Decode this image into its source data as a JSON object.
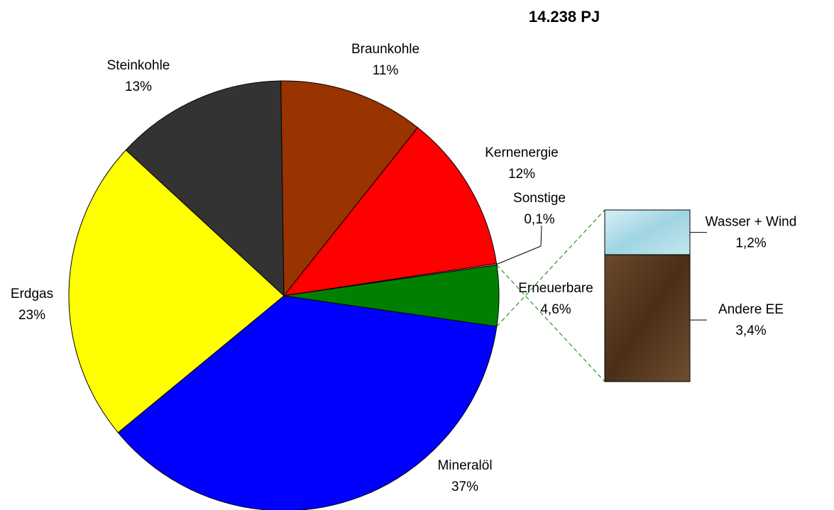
{
  "chart_data": {
    "type": "pie",
    "title": "14.238 PJ",
    "categories": [
      "Mineralöl",
      "Erdgas",
      "Steinkohle",
      "Braunkohle",
      "Kernenergie",
      "Sonstige",
      "Erneuerbare"
    ],
    "values": [
      37,
      23,
      13,
      11,
      12,
      0.1,
      4.6
    ],
    "value_labels": [
      "37%",
      "23%",
      "13%",
      "11%",
      "12%",
      "0,1%",
      "4,6%"
    ],
    "colors": [
      "#0000ff",
      "#ffff00",
      "#333333",
      "#993300",
      "#ff0000",
      "#ff99cc",
      "#008000"
    ],
    "detail": {
      "categories": [
        "Wasser + Wind",
        "Andere EE"
      ],
      "values": [
        1.2,
        3.4
      ],
      "value_labels": [
        "1,2%",
        "3,4%"
      ],
      "colors": [
        "#a9dbe6",
        "#5b3b22"
      ]
    }
  }
}
